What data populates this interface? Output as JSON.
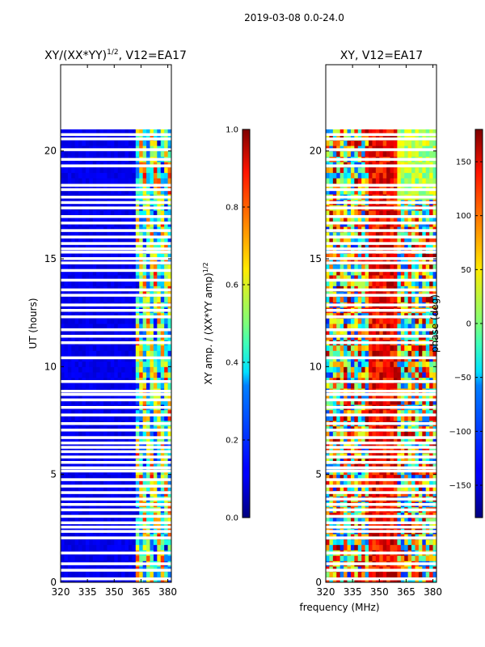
{
  "figure": {
    "suptitle": "2019-03-08 0.0-24.0",
    "shared_xlabel": "frequency (MHz)"
  },
  "chart_data": [
    {
      "type": "heatmap",
      "title_main": "XY/(XX*YY)",
      "title_exp": "1/2",
      "title_tail": ", V12=EA17",
      "ylabel": "UT (hours)",
      "xlim": [
        320,
        382
      ],
      "ylim": [
        0,
        24
      ],
      "xticks": [
        "320",
        "335",
        "350",
        "365",
        "380"
      ],
      "xtick_values": [
        320,
        335,
        350,
        365,
        380
      ],
      "yticks": [
        "0",
        "5",
        "10",
        "15",
        "20"
      ],
      "ytick_values": [
        0,
        5,
        10,
        15,
        20
      ],
      "data_extent_hours": [
        0,
        21
      ],
      "colorbar": {
        "label_main": "XY amp. / (XX*YY amp)",
        "label_exp": "1/2",
        "ticks": [
          "0.0",
          "0.2",
          "0.4",
          "0.6",
          "0.8",
          "1.0"
        ],
        "tick_values": [
          0.0,
          0.2,
          0.4,
          0.6,
          0.8,
          1.0
        ],
        "range": [
          0,
          1
        ],
        "colormap": "jet"
      }
    },
    {
      "type": "heatmap",
      "title": "XY, V12=EA17",
      "ylabel": "phase (deg)",
      "xlim": [
        320,
        382
      ],
      "ylim": [
        0,
        24
      ],
      "xticks": [
        "320",
        "335",
        "350",
        "365",
        "380"
      ],
      "xtick_values": [
        320,
        335,
        350,
        365,
        380
      ],
      "yticks": [
        "0",
        "5",
        "10",
        "15",
        "20"
      ],
      "ytick_values": [
        0,
        5,
        10,
        15,
        20
      ],
      "data_extent_hours": [
        0,
        21
      ],
      "colorbar": {
        "ticks": [
          "−150",
          "−100",
          "−50",
          "0",
          "50",
          "100",
          "150"
        ],
        "tick_values": [
          -150,
          -100,
          -50,
          0,
          50,
          100,
          150
        ],
        "range": [
          -180,
          180
        ],
        "colormap": "jet"
      }
    }
  ],
  "blank_hour_rows": [
    0.15,
    0.55,
    0.85,
    1.35,
    2.05,
    2.35,
    2.55,
    2.75,
    3.05,
    3.35,
    3.6,
    3.85,
    4.15,
    4.45,
    4.75,
    5.15,
    5.3,
    5.55,
    5.8,
    6.05,
    6.25,
    6.45,
    6.7,
    7.05,
    7.35,
    7.75,
    8.1,
    8.45,
    8.7,
    8.85,
    9.3,
    10.4,
    11.1,
    11.4,
    11.7,
    12.3,
    12.6,
    12.85,
    13.3,
    13.55,
    14.0,
    14.45,
    14.8,
    15.0,
    15.3,
    15.45,
    15.7,
    16.0,
    16.3,
    16.65,
    16.95,
    17.35,
    17.6,
    17.85,
    18.2,
    18.4,
    19.3,
    19.6,
    20.05,
    20.55,
    20.75
  ]
}
